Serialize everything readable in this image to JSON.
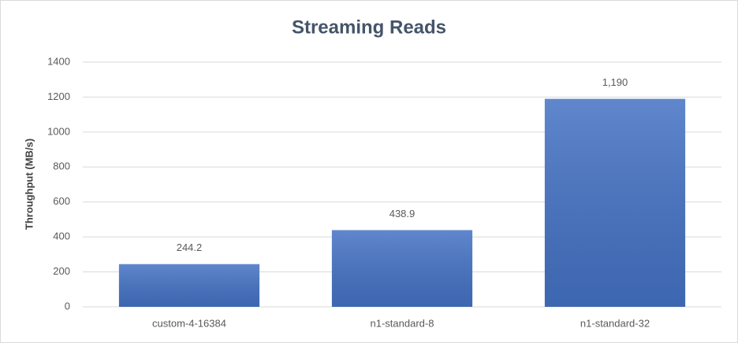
{
  "chart_data": {
    "type": "bar",
    "title": "Streaming Reads",
    "y_axis_label": "Throughput (MB/s)",
    "categories": [
      "custom-4-16384",
      "n1-standard-8",
      "n1-standard-32"
    ],
    "values": [
      244.2,
      438.9,
      1190
    ],
    "value_labels": [
      "244.2",
      "438.9",
      "1,190"
    ],
    "color": "#4472c4",
    "ylim": [
      0,
      1400
    ],
    "yticks": [
      0,
      200,
      400,
      600,
      800,
      1000,
      1200,
      1400
    ],
    "grid": true
  }
}
